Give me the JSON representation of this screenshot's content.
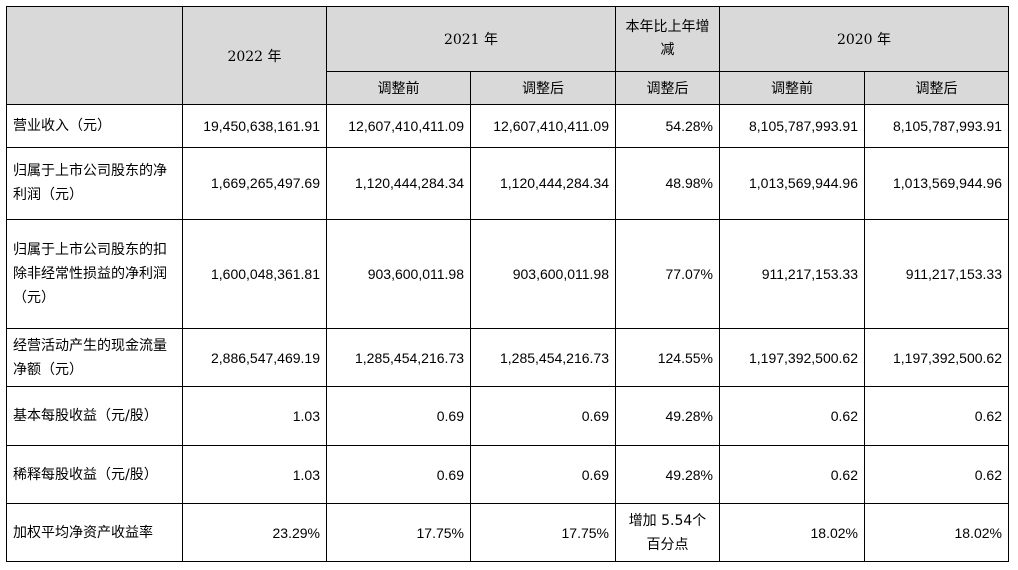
{
  "headers": {
    "year2022": "2022 年",
    "year2021": "2021 年",
    "change": "本年比上年增减",
    "year2020": "2020 年",
    "sub_before_2021": "调整前",
    "sub_after_2021": "调整后",
    "sub_after_change": "调整后",
    "sub_before_2020": "调整前",
    "sub_after_2020": "调整后"
  },
  "rows": [
    {
      "label": "营业收入（元）",
      "v2022": "19,450,638,161.91",
      "v2021_before": "12,607,410,411.09",
      "v2021_after": "12,607,410,411.09",
      "change": "54.28%",
      "v2020_before": "8,105,787,993.91",
      "v2020_after": "8,105,787,993.91"
    },
    {
      "label": "归属于上市公司股东的净利润（元）",
      "v2022": "1,669,265,497.69",
      "v2021_before": "1,120,444,284.34",
      "v2021_after": "1,120,444,284.34",
      "change": "48.98%",
      "v2020_before": "1,013,569,944.96",
      "v2020_after": "1,013,569,944.96"
    },
    {
      "label": "归属于上市公司股东的扣除非经常性损益的净利润（元）",
      "v2022": "1,600,048,361.81",
      "v2021_before": "903,600,011.98",
      "v2021_after": "903,600,011.98",
      "change": "77.07%",
      "v2020_before": "911,217,153.33",
      "v2020_after": "911,217,153.33"
    },
    {
      "label": "经营活动产生的现金流量净额（元）",
      "v2022": "2,886,547,469.19",
      "v2021_before": "1,285,454,216.73",
      "v2021_after": "1,285,454,216.73",
      "change": "124.55%",
      "v2020_before": "1,197,392,500.62",
      "v2020_after": "1,197,392,500.62"
    },
    {
      "label": "基本每股收益（元/股）",
      "v2022": "1.03",
      "v2021_before": "0.69",
      "v2021_after": "0.69",
      "change": "49.28%",
      "v2020_before": "0.62",
      "v2020_after": "0.62"
    },
    {
      "label": "稀释每股收益（元/股）",
      "v2022": "1.03",
      "v2021_before": "0.69",
      "v2021_after": "0.69",
      "change": "49.28%",
      "v2020_before": "0.62",
      "v2020_after": "0.62"
    },
    {
      "label": "加权平均净资产收益率",
      "v2022": "23.29%",
      "v2021_before": "17.75%",
      "v2021_after": "17.75%",
      "change": "增加 5.54个百分点",
      "v2020_before": "18.02%",
      "v2020_after": "18.02%"
    }
  ]
}
